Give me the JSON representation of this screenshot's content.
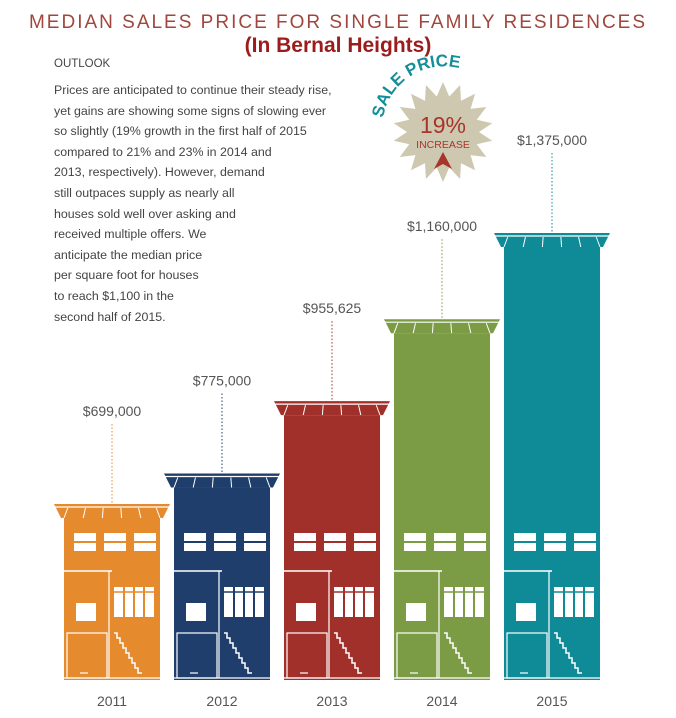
{
  "header": {
    "title": "MEDIAN SALES PRICE FOR SINGLE FAMILY RESIDENCES",
    "subtitle": "(In Bernal Heights)"
  },
  "outlook": {
    "heading": "OUTLOOK",
    "text": "Prices are anticipated to continue their steady rise,\nyet gains are showing some signs of slowing ever\nso slightly (19% growth in the first half of 2015\ncompared to 21% and 23% in 2014 and\n2013, respectively). However, demand\nstill outpaces supply as nearly all\nhouses sold well over asking and\nreceived multiple offers. We\nanticipate the median price\nper square foot for houses\nto reach $1,100 in the\nsecond half of 2015."
  },
  "badge": {
    "arc_text": "SALE PRICE",
    "percent": "19%",
    "label": "INCREASE",
    "icon": "arrow-up-icon",
    "star_color": "#cfc8b0",
    "arc_color": "#138e9a",
    "text_color": "#a8352b"
  },
  "chart_data": {
    "type": "bar",
    "title": "MEDIAN SALES PRICE FOR SINGLE FAMILY RESIDENCES",
    "categories": [
      "2011",
      "2012",
      "2013",
      "2014",
      "2015"
    ],
    "values": [
      699000,
      775000,
      955625,
      1160000,
      1375000
    ],
    "labels": [
      "$699,000",
      "$775,000",
      "$955,625",
      "$1,160,000",
      "$1,375,000"
    ],
    "colors": [
      "#e68a2e",
      "#1f3e6b",
      "#a2302a",
      "#7c9b45",
      "#0e8b97"
    ],
    "bar_style": "house-shaped"
  }
}
